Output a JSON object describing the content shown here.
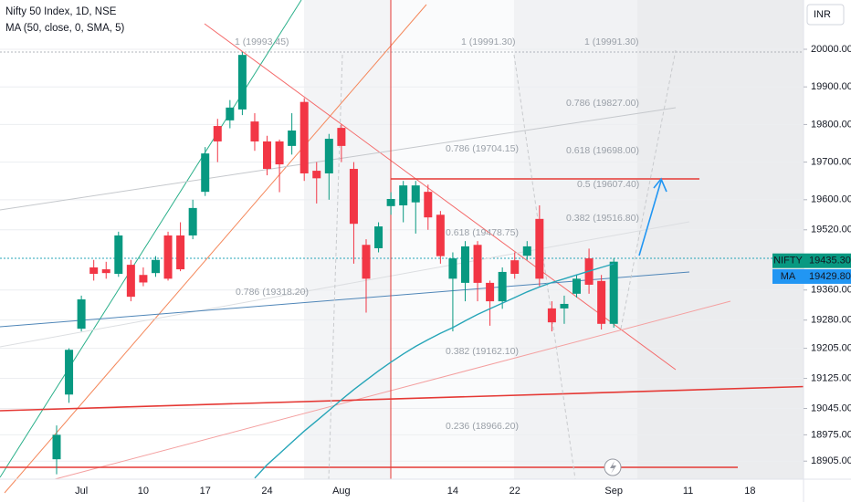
{
  "chart_data": {
    "type": "candlestick",
    "title": "Nifty 50 Index, 1D, NSE",
    "indicator": "MA (50, close, 0, SMA, 5)",
    "currency": "INR",
    "up_color": "#089981",
    "down_color": "#f23645",
    "categories": [
      null,
      null,
      "Jul",
      null,
      null,
      null,
      null,
      "10",
      null,
      null,
      null,
      null,
      "17",
      null,
      null,
      null,
      null,
      "24",
      null,
      null,
      null,
      null,
      null,
      "Aug",
      null,
      null,
      null,
      null,
      null,
      null,
      null,
      null,
      "14",
      null,
      null,
      null,
      null,
      "22",
      null,
      null,
      null,
      null,
      null,
      null,
      null,
      "Sep",
      null,
      null,
      null,
      null,
      null,
      "11",
      null,
      null,
      null,
      null,
      "18"
    ],
    "open": [
      18910,
      19082,
      19257,
      19420,
      19415,
      19403,
      19427,
      19400,
      19405,
      19505,
      19505,
      19505,
      19621,
      19796,
      19811,
      19840,
      19808,
      19755,
      19755,
      19743,
      19860,
      19677,
      19670,
      19791,
      19682,
      19480,
      19471,
      19583,
      19585,
      19593,
      19621,
      19560,
      19390,
      19379,
      19480,
      19379,
      19330,
      19439,
      19451,
      19549,
      19311,
      19311,
      19350,
      19444,
      19384,
      19270,
      null,
      null,
      null,
      null,
      null,
      null,
      null,
      null,
      null,
      null,
      null
    ],
    "high": [
      19000,
      19205,
      19345,
      19440,
      19435,
      19515,
      19440,
      19420,
      19450,
      19515,
      19540,
      19600,
      19740,
      19815,
      19865,
      19993,
      19830,
      19770,
      19760,
      19830,
      19870,
      19700,
      19775,
      19800,
      19700,
      19495,
      19540,
      19620,
      19650,
      19650,
      19640,
      19570,
      19460,
      19490,
      19490,
      19385,
      19420,
      19460,
      19490,
      19585,
      19330,
      19345,
      19400,
      19470,
      19400,
      19445,
      null,
      null,
      null,
      null,
      null,
      null,
      null,
      null,
      null,
      null,
      null
    ],
    "low": [
      18870,
      19060,
      19250,
      19385,
      19390,
      19395,
      19330,
      19370,
      19395,
      19385,
      19410,
      19495,
      19610,
      19700,
      19790,
      19825,
      19730,
      19665,
      19620,
      19720,
      19650,
      19590,
      19600,
      19700,
      19430,
      19300,
      19460,
      19560,
      19540,
      19510,
      19520,
      19430,
      19250,
      19330,
      19330,
      19265,
      19310,
      19390,
      19440,
      19370,
      19250,
      19270,
      19340,
      19350,
      19255,
      19260,
      null,
      null,
      null,
      null,
      null,
      null,
      null,
      null,
      null,
      null,
      null
    ],
    "close": [
      18975,
      19201,
      19335,
      19403,
      19405,
      19505,
      19342,
      19380,
      19440,
      19390,
      19415,
      19578,
      19723,
      19755,
      19845,
      19985,
      19755,
      19682,
      19694,
      19784,
      19670,
      19657,
      19762,
      19743,
      19536,
      19390,
      19529,
      19602,
      19638,
      19638,
      19553,
      19450,
      19444,
      19476,
      19379,
      19330,
      19408,
      19403,
      19476,
      19390,
      19274,
      19323,
      19390,
      19374,
      19270,
      19435.3,
      null,
      null,
      null,
      null,
      null,
      null,
      null,
      null,
      null,
      null,
      null
    ],
    "ma": {
      "name": "MA",
      "color": "#26a5b8",
      "values": [
        null,
        null,
        null,
        null,
        null,
        null,
        null,
        null,
        null,
        null,
        null,
        null,
        null,
        null,
        null,
        null,
        18860,
        18895,
        18925,
        18955,
        18985,
        19012,
        19040,
        19068,
        19095,
        19120,
        19145,
        19168,
        19190,
        19210,
        19228,
        19245,
        19260,
        19278,
        19295,
        19310,
        19325,
        19340,
        19355,
        19368,
        19380,
        19390,
        19400,
        19410,
        19420,
        19429.8,
        null,
        null,
        null,
        null,
        null,
        null,
        null,
        null,
        null,
        null,
        null
      ]
    },
    "last_price": {
      "name": "NIFTY",
      "value": 19435.3,
      "label": "19435.30"
    },
    "ma_price": {
      "name": "MA",
      "value": 19429.8,
      "label": "19429.80"
    },
    "ylim": [
      18857,
      20131
    ],
    "yticks": [
      {
        "value": 20000,
        "label": "20000.00"
      },
      {
        "value": 19900,
        "label": "19900.00"
      },
      {
        "value": 19800,
        "label": "19800.00"
      },
      {
        "value": 19700,
        "label": "19700.00"
      },
      {
        "value": 19600,
        "label": "19600.00"
      },
      {
        "value": 19520,
        "label": "19520.00"
      },
      {
        "value": 19360,
        "label": "19360.00"
      },
      {
        "value": 19280,
        "label": "19280.00"
      },
      {
        "value": 19205,
        "label": "19205.00"
      },
      {
        "value": 19125,
        "label": "19125.00"
      },
      {
        "value": 19045,
        "label": "19045.00"
      },
      {
        "value": 18975,
        "label": "18975.00"
      },
      {
        "value": 18905,
        "label": "18905.00"
      }
    ],
    "grid": true,
    "annotations": [
      "1 (19993.45)",
      "1 (19991.30)",
      "1 (19991.30)",
      "0.786 (19827.00)",
      "0.786 (19704.15)",
      "0.618 (19698.00)",
      "0.5 (19607.40)",
      "0.382 (19516.80)",
      "0.618 (19478.75)",
      "0.786 (19318.20)",
      "0.382 (19162.10)",
      "0.236 (18966.20)"
    ]
  }
}
